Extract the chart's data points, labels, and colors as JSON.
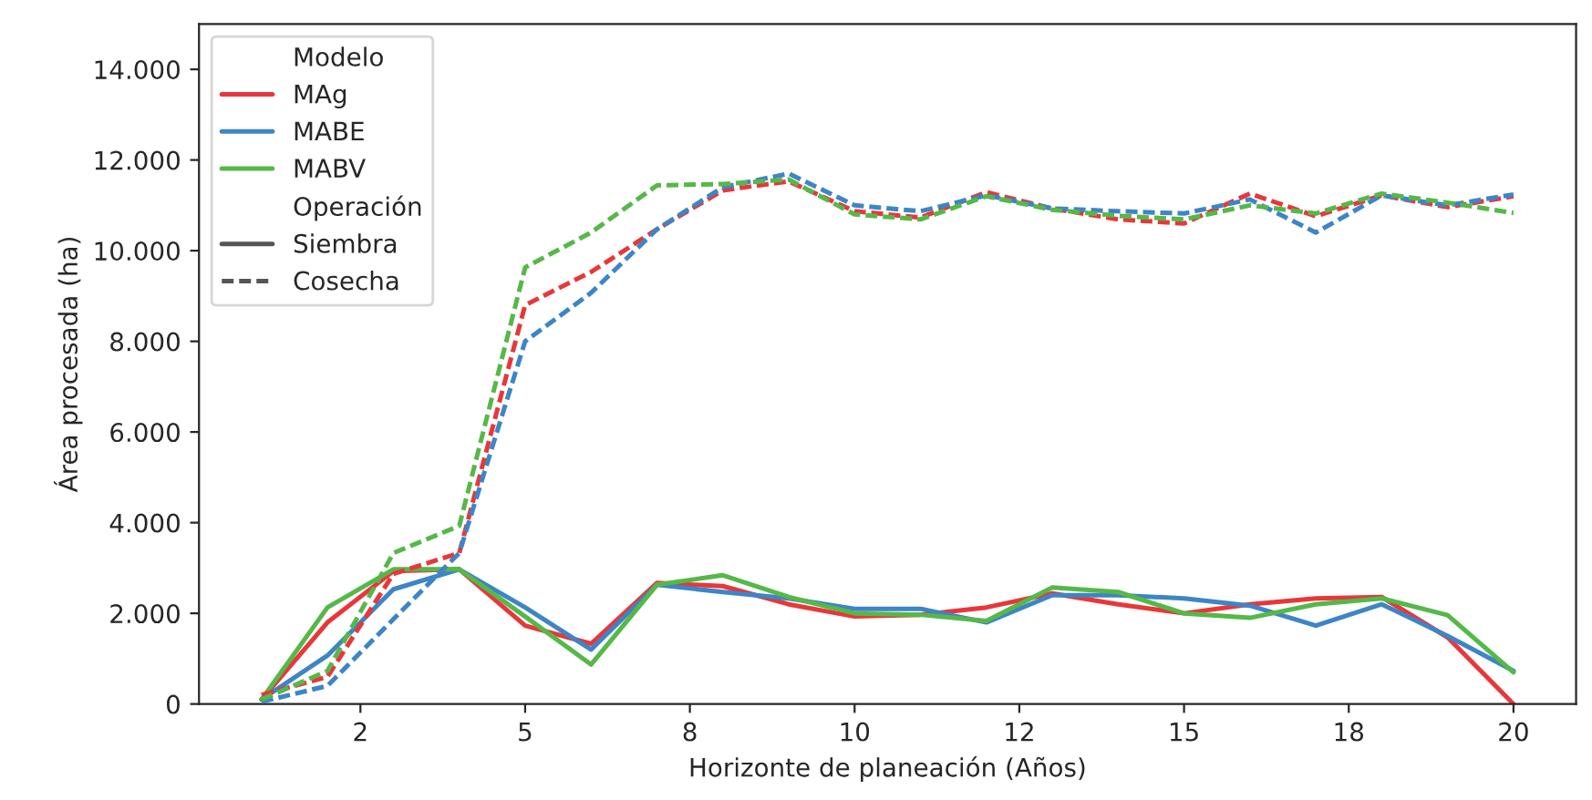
{
  "chart_data": {
    "type": "line",
    "xlabel": "Horizonte de planeación (Años)",
    "ylabel": "Área procesada (ha)",
    "x": [
      1,
      2,
      3,
      4,
      5,
      6,
      7,
      8,
      9,
      10,
      11,
      12,
      13,
      14,
      15,
      16,
      17,
      18,
      19,
      20
    ],
    "xlim": [
      0.05,
      20.95
    ],
    "xticks": [
      {
        "value": 2.5,
        "label": "2"
      },
      {
        "value": 5,
        "label": "5"
      },
      {
        "value": 7.5,
        "label": "8"
      },
      {
        "value": 10,
        "label": "10"
      },
      {
        "value": 12.5,
        "label": "12"
      },
      {
        "value": 15,
        "label": "15"
      },
      {
        "value": 17.5,
        "label": "18"
      },
      {
        "value": 20,
        "label": "20"
      }
    ],
    "ylim": [
      0,
      15000
    ],
    "yticks": [
      0,
      {
        "value": 2000,
        "label": "2.000"
      },
      {
        "value": 4000,
        "label": "4.000"
      },
      {
        "value": 6000,
        "label": "6.000"
      },
      {
        "value": 8000,
        "label": "8.000"
      },
      {
        "value": 10000,
        "label": "10.000"
      },
      {
        "value": 12000,
        "label": "12.000"
      },
      {
        "value": 14000,
        "label": "14.000"
      }
    ],
    "legend": "top left",
    "legend_title": "Modelo",
    "grid": false,
    "annotations": [
      "Operación",
      "Siembra",
      "Cosecha"
    ],
    "series": [
      {
        "name": "MAg",
        "color": "#e8373a",
        "line_style": "solid",
        "values": [
          100,
          1800,
          2930,
          2970,
          1730,
          1330,
          2670,
          2600,
          2200,
          1930,
          1970,
          2130,
          2440,
          2200,
          2000,
          2200,
          2330,
          2360,
          1470,
          0
        ]
      },
      {
        "name": "MABE",
        "color": "#3d85c6",
        "line_style": "solid",
        "values": [
          100,
          1070,
          2530,
          2970,
          2130,
          1200,
          2630,
          2470,
          2330,
          2100,
          2100,
          1800,
          2400,
          2400,
          2330,
          2170,
          1730,
          2200,
          1500,
          730
        ]
      },
      {
        "name": "MABV",
        "color": "#55b848",
        "line_style": "solid",
        "values": [
          100,
          2130,
          2970,
          2970,
          1930,
          870,
          2630,
          2840,
          2360,
          2000,
          1970,
          1830,
          2570,
          2470,
          2000,
          1900,
          2200,
          2330,
          1960,
          700
        ]
      },
      {
        "color": "#e8373a",
        "line_style": "dashed",
        "values": [
          200,
          600,
          2870,
          3330,
          8800,
          9530,
          10470,
          11330,
          11530,
          10870,
          10730,
          11290,
          10930,
          10690,
          10600,
          11260,
          10760,
          11220,
          10960,
          11200
        ]
      },
      {
        "color": "#3d85c6",
        "line_style": "dashed",
        "values": [
          50,
          400,
          1870,
          3330,
          8000,
          9070,
          10470,
          11400,
          11700,
          11000,
          10870,
          11220,
          10930,
          10870,
          10820,
          11130,
          10400,
          11220,
          11000,
          11240
        ]
      },
      {
        "color": "#55b848",
        "line_style": "dashed",
        "values": [
          100,
          730,
          3330,
          3930,
          9630,
          10400,
          11440,
          11470,
          11570,
          10800,
          10690,
          11200,
          10900,
          10770,
          10690,
          11000,
          10820,
          11260,
          11060,
          10830
        ]
      }
    ]
  }
}
